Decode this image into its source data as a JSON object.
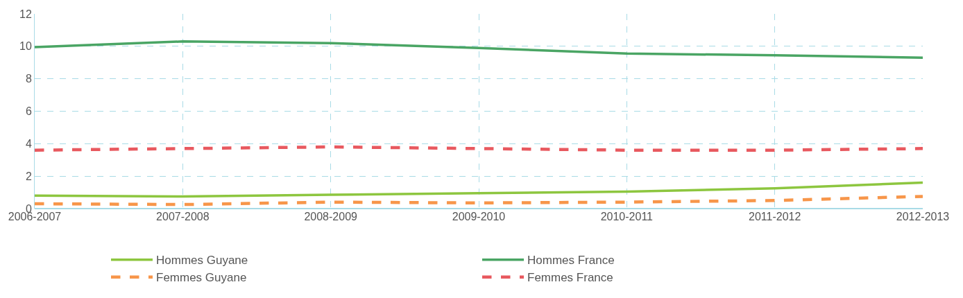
{
  "chart_data": {
    "type": "line",
    "categories": [
      "2006-2007",
      "2007-2008",
      "2008-2009",
      "2009-2010",
      "2010-2011",
      "2011-2012",
      "2012-2013"
    ],
    "series": [
      {
        "name": "Hommes Guyane",
        "color": "#8dc63f",
        "line_style": "solid",
        "values": [
          0.8,
          0.75,
          0.85,
          0.95,
          1.05,
          1.25,
          1.6
        ]
      },
      {
        "name": "Hommes France",
        "color": "#4aa564",
        "line_style": "solid",
        "values": [
          9.95,
          10.3,
          10.2,
          9.9,
          9.55,
          9.45,
          9.3
        ]
      },
      {
        "name": "Femmes Guyane",
        "color": "#f7964a",
        "line_style": "dashed",
        "values": [
          0.3,
          0.25,
          0.4,
          0.35,
          0.4,
          0.5,
          0.75
        ]
      },
      {
        "name": "Femmes France",
        "color": "#e8595f",
        "line_style": "dashed",
        "values": [
          3.6,
          3.7,
          3.8,
          3.7,
          3.6,
          3.6,
          3.7
        ]
      }
    ],
    "ylim": [
      0,
      12
    ],
    "yticks": [
      0,
      2,
      4,
      6,
      8,
      10,
      12
    ],
    "grid": true,
    "legend": "bottom",
    "marker": "none"
  }
}
